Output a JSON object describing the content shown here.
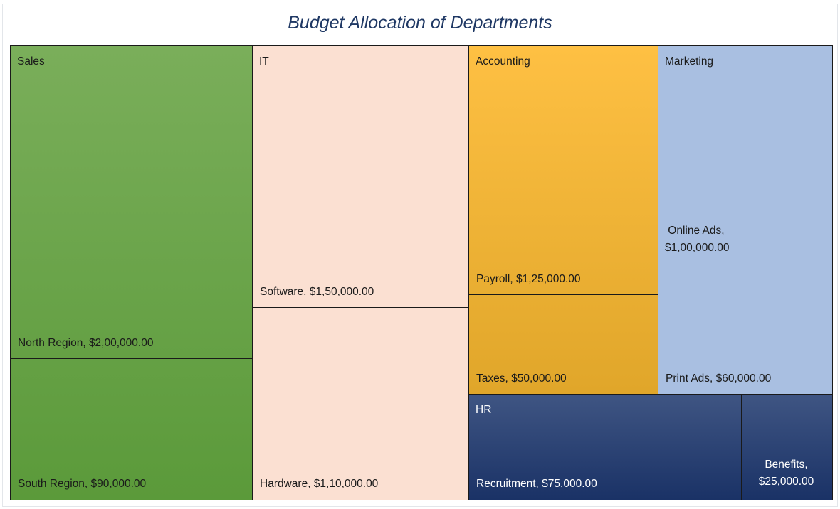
{
  "chart_data": {
    "type": "treemap",
    "title": "Budget Allocation of Departments",
    "groups": [
      {
        "name": "Sales",
        "color": "#6ea552",
        "children": [
          {
            "label": "North Region,  $2,00,000.00",
            "name": "North Region",
            "value": 200000
          },
          {
            "label": "South Region,  $90,000.00",
            "name": "South Region",
            "value": 90000
          }
        ]
      },
      {
        "name": "IT",
        "color": "#fbe0d2",
        "children": [
          {
            "label": "Software,  $1,50,000.00",
            "name": "Software",
            "value": 150000
          },
          {
            "label": "Hardware,  $1,10,000.00",
            "name": "Hardware",
            "value": 110000
          }
        ]
      },
      {
        "name": "Accounting",
        "color": "#fdb933",
        "children": [
          {
            "label": "Payroll,  $1,25,000.00",
            "name": "Payroll",
            "value": 125000
          },
          {
            "label": "Taxes,  $50,000.00",
            "name": "Taxes",
            "value": 50000
          }
        ]
      },
      {
        "name": "Marketing",
        "color": "#a9bfe1",
        "children": [
          {
            "label": "Online Ads,\n$1,00,000.00",
            "name": "Online Ads",
            "value": 100000
          },
          {
            "label": "Print Ads,  $60,000.00",
            "name": "Print Ads",
            "value": 60000
          }
        ]
      },
      {
        "name": "HR",
        "color": "#1f3a6e",
        "children": [
          {
            "label": "Recruitment,  $75,000.00",
            "name": "Recruitment",
            "value": 75000
          },
          {
            "label": "Benefits,\n$25,000.00",
            "name": "Benefits",
            "value": 25000
          }
        ]
      }
    ]
  }
}
